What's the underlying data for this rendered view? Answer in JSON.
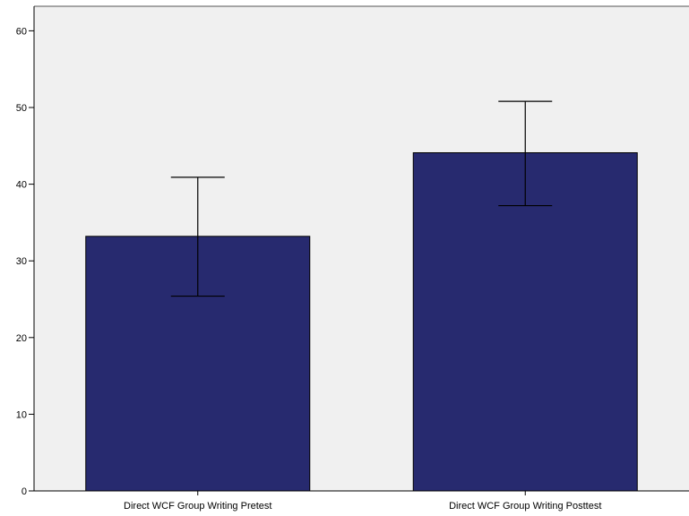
{
  "chart_data": {
    "type": "bar",
    "title": "",
    "xlabel": "",
    "ylabel": "",
    "ylim": [
      0,
      63
    ],
    "yticks": [
      0,
      10,
      20,
      30,
      40,
      50,
      60
    ],
    "categories": [
      "Direct WCF Group Writing Pretest",
      "Direct WCF Group Writing Posttest"
    ],
    "values": [
      33.2,
      44.1
    ],
    "error_bars": [
      {
        "low": 25.4,
        "high": 40.9
      },
      {
        "low": 37.2,
        "high": 50.8
      }
    ],
    "grid": false,
    "colors": {
      "bar": "#272a6f",
      "plot_background": "#f0f0f0",
      "axis": "#000000"
    }
  }
}
